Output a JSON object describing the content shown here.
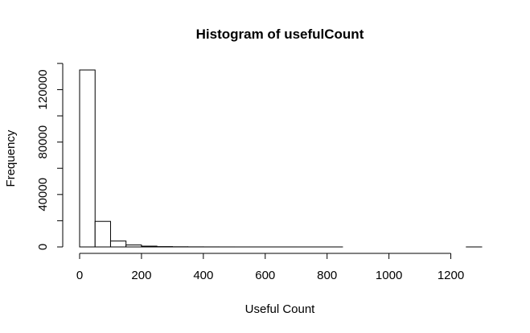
{
  "chart_data": {
    "type": "bar",
    "title": "Histogram of usefulCount",
    "xlabel": "Useful Count",
    "ylabel": "Frequency",
    "xlim": [
      0,
      1300
    ],
    "ylim": [
      0,
      135000
    ],
    "x_ticks": [
      0,
      200,
      400,
      600,
      800,
      1000,
      1200
    ],
    "y_ticks": [
      0,
      40000,
      80000,
      120000
    ],
    "y_minor_ticks": [
      20000,
      60000,
      100000,
      140000
    ],
    "bin_width": 50,
    "bins": [
      {
        "start": 0,
        "end": 50,
        "count": 135000
      },
      {
        "start": 50,
        "end": 100,
        "count": 19500
      },
      {
        "start": 100,
        "end": 150,
        "count": 4500
      },
      {
        "start": 150,
        "end": 200,
        "count": 1500
      },
      {
        "start": 200,
        "end": 250,
        "count": 600
      },
      {
        "start": 250,
        "end": 300,
        "count": 250
      },
      {
        "start": 300,
        "end": 350,
        "count": 120
      },
      {
        "start": 350,
        "end": 400,
        "count": 60
      },
      {
        "start": 400,
        "end": 450,
        "count": 30
      },
      {
        "start": 450,
        "end": 500,
        "count": 15
      },
      {
        "start": 500,
        "end": 550,
        "count": 8
      },
      {
        "start": 550,
        "end": 600,
        "count": 5
      },
      {
        "start": 600,
        "end": 650,
        "count": 3
      },
      {
        "start": 650,
        "end": 700,
        "count": 2
      },
      {
        "start": 700,
        "end": 750,
        "count": 1
      },
      {
        "start": 750,
        "end": 800,
        "count": 1
      },
      {
        "start": 800,
        "end": 850,
        "count": 1
      },
      {
        "start": 850,
        "end": 900,
        "count": 0
      },
      {
        "start": 900,
        "end": 950,
        "count": 0
      },
      {
        "start": 950,
        "end": 1000,
        "count": 0
      },
      {
        "start": 1000,
        "end": 1050,
        "count": 0
      },
      {
        "start": 1050,
        "end": 1100,
        "count": 0
      },
      {
        "start": 1100,
        "end": 1150,
        "count": 0
      },
      {
        "start": 1150,
        "end": 1200,
        "count": 0
      },
      {
        "start": 1200,
        "end": 1250,
        "count": 0
      },
      {
        "start": 1250,
        "end": 1300,
        "count": 1
      }
    ],
    "grid": false
  }
}
